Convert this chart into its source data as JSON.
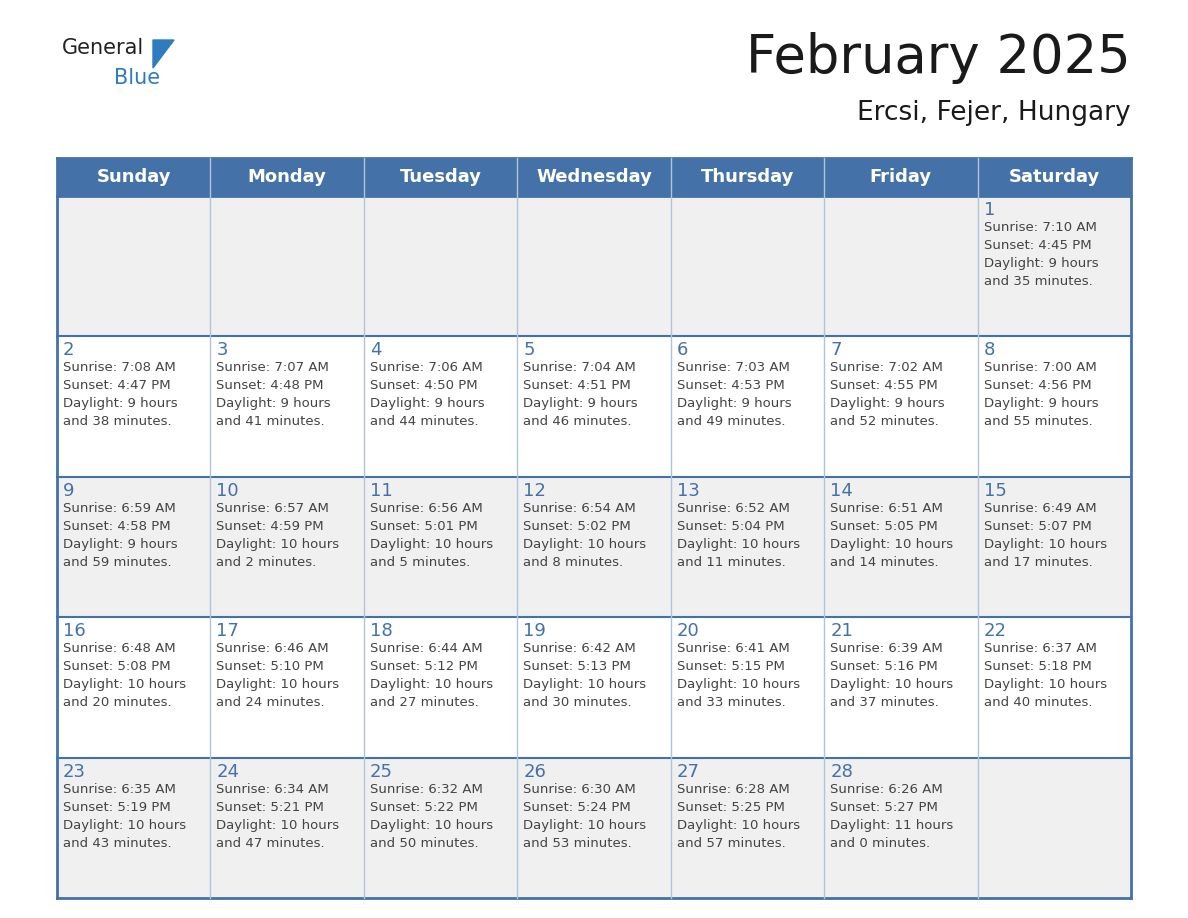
{
  "title": "February 2025",
  "subtitle": "Ercsi, Fejer, Hungary",
  "days_of_week": [
    "Sunday",
    "Monday",
    "Tuesday",
    "Wednesday",
    "Thursday",
    "Friday",
    "Saturday"
  ],
  "header_bg": "#4472a8",
  "header_text_color": "#ffffff",
  "row0_bg": "#f0f0f0",
  "row1_bg": "#ffffff",
  "row2_bg": "#f0f0f0",
  "row3_bg": "#ffffff",
  "row4_bg": "#f0f0f0",
  "border_color": "#4472a8",
  "sep_color": "#b0c4d8",
  "day_number_color": "#4472a8",
  "text_color": "#444444",
  "logo_general_color": "#222222",
  "logo_blue_color": "#2e7bbf",
  "logo_triangle_color": "#2e7bbf",
  "calendar_data": [
    {
      "day": 1,
      "col": 6,
      "row": 0,
      "sunrise": "7:10 AM",
      "sunset": "4:45 PM",
      "daylight_hours": 9,
      "daylight_minutes": 35
    },
    {
      "day": 2,
      "col": 0,
      "row": 1,
      "sunrise": "7:08 AM",
      "sunset": "4:47 PM",
      "daylight_hours": 9,
      "daylight_minutes": 38
    },
    {
      "day": 3,
      "col": 1,
      "row": 1,
      "sunrise": "7:07 AM",
      "sunset": "4:48 PM",
      "daylight_hours": 9,
      "daylight_minutes": 41
    },
    {
      "day": 4,
      "col": 2,
      "row": 1,
      "sunrise": "7:06 AM",
      "sunset": "4:50 PM",
      "daylight_hours": 9,
      "daylight_minutes": 44
    },
    {
      "day": 5,
      "col": 3,
      "row": 1,
      "sunrise": "7:04 AM",
      "sunset": "4:51 PM",
      "daylight_hours": 9,
      "daylight_minutes": 46
    },
    {
      "day": 6,
      "col": 4,
      "row": 1,
      "sunrise": "7:03 AM",
      "sunset": "4:53 PM",
      "daylight_hours": 9,
      "daylight_minutes": 49
    },
    {
      "day": 7,
      "col": 5,
      "row": 1,
      "sunrise": "7:02 AM",
      "sunset": "4:55 PM",
      "daylight_hours": 9,
      "daylight_minutes": 52
    },
    {
      "day": 8,
      "col": 6,
      "row": 1,
      "sunrise": "7:00 AM",
      "sunset": "4:56 PM",
      "daylight_hours": 9,
      "daylight_minutes": 55
    },
    {
      "day": 9,
      "col": 0,
      "row": 2,
      "sunrise": "6:59 AM",
      "sunset": "4:58 PM",
      "daylight_hours": 9,
      "daylight_minutes": 59
    },
    {
      "day": 10,
      "col": 1,
      "row": 2,
      "sunrise": "6:57 AM",
      "sunset": "4:59 PM",
      "daylight_hours": 10,
      "daylight_minutes": 2
    },
    {
      "day": 11,
      "col": 2,
      "row": 2,
      "sunrise": "6:56 AM",
      "sunset": "5:01 PM",
      "daylight_hours": 10,
      "daylight_minutes": 5
    },
    {
      "day": 12,
      "col": 3,
      "row": 2,
      "sunrise": "6:54 AM",
      "sunset": "5:02 PM",
      "daylight_hours": 10,
      "daylight_minutes": 8
    },
    {
      "day": 13,
      "col": 4,
      "row": 2,
      "sunrise": "6:52 AM",
      "sunset": "5:04 PM",
      "daylight_hours": 10,
      "daylight_minutes": 11
    },
    {
      "day": 14,
      "col": 5,
      "row": 2,
      "sunrise": "6:51 AM",
      "sunset": "5:05 PM",
      "daylight_hours": 10,
      "daylight_minutes": 14
    },
    {
      "day": 15,
      "col": 6,
      "row": 2,
      "sunrise": "6:49 AM",
      "sunset": "5:07 PM",
      "daylight_hours": 10,
      "daylight_minutes": 17
    },
    {
      "day": 16,
      "col": 0,
      "row": 3,
      "sunrise": "6:48 AM",
      "sunset": "5:08 PM",
      "daylight_hours": 10,
      "daylight_minutes": 20
    },
    {
      "day": 17,
      "col": 1,
      "row": 3,
      "sunrise": "6:46 AM",
      "sunset": "5:10 PM",
      "daylight_hours": 10,
      "daylight_minutes": 24
    },
    {
      "day": 18,
      "col": 2,
      "row": 3,
      "sunrise": "6:44 AM",
      "sunset": "5:12 PM",
      "daylight_hours": 10,
      "daylight_minutes": 27
    },
    {
      "day": 19,
      "col": 3,
      "row": 3,
      "sunrise": "6:42 AM",
      "sunset": "5:13 PM",
      "daylight_hours": 10,
      "daylight_minutes": 30
    },
    {
      "day": 20,
      "col": 4,
      "row": 3,
      "sunrise": "6:41 AM",
      "sunset": "5:15 PM",
      "daylight_hours": 10,
      "daylight_minutes": 33
    },
    {
      "day": 21,
      "col": 5,
      "row": 3,
      "sunrise": "6:39 AM",
      "sunset": "5:16 PM",
      "daylight_hours": 10,
      "daylight_minutes": 37
    },
    {
      "day": 22,
      "col": 6,
      "row": 3,
      "sunrise": "6:37 AM",
      "sunset": "5:18 PM",
      "daylight_hours": 10,
      "daylight_minutes": 40
    },
    {
      "day": 23,
      "col": 0,
      "row": 4,
      "sunrise": "6:35 AM",
      "sunset": "5:19 PM",
      "daylight_hours": 10,
      "daylight_minutes": 43
    },
    {
      "day": 24,
      "col": 1,
      "row": 4,
      "sunrise": "6:34 AM",
      "sunset": "5:21 PM",
      "daylight_hours": 10,
      "daylight_minutes": 47
    },
    {
      "day": 25,
      "col": 2,
      "row": 4,
      "sunrise": "6:32 AM",
      "sunset": "5:22 PM",
      "daylight_hours": 10,
      "daylight_minutes": 50
    },
    {
      "day": 26,
      "col": 3,
      "row": 4,
      "sunrise": "6:30 AM",
      "sunset": "5:24 PM",
      "daylight_hours": 10,
      "daylight_minutes": 53
    },
    {
      "day": 27,
      "col": 4,
      "row": 4,
      "sunrise": "6:28 AM",
      "sunset": "5:25 PM",
      "daylight_hours": 10,
      "daylight_minutes": 57
    },
    {
      "day": 28,
      "col": 5,
      "row": 4,
      "sunrise": "6:26 AM",
      "sunset": "5:27 PM",
      "daylight_hours": 11,
      "daylight_minutes": 0
    }
  ]
}
